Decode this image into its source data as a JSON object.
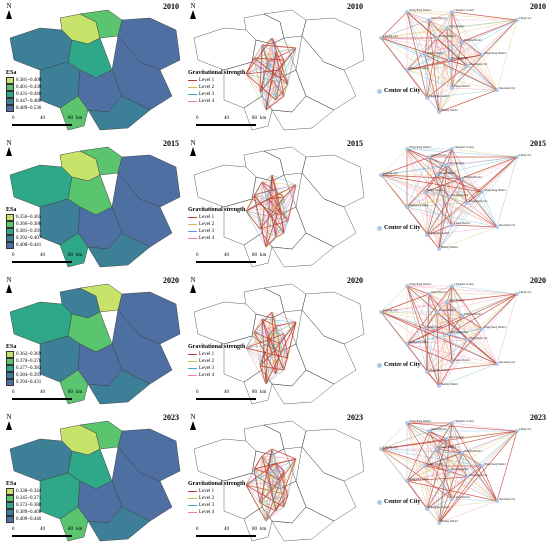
{
  "colors": {
    "c1": "#c8e36a",
    "c2": "#5bc46f",
    "c3": "#2ea889",
    "c4": "#3c7f97",
    "c5": "#4e6fa1",
    "level1": "#c0392b",
    "level2": "#d4b84a",
    "level3": "#4aa6c9",
    "level4": "#f07aa8",
    "center": "#a9c9ef"
  },
  "north_label": "N",
  "esa_title": "ESa",
  "grav_title": "Gravitational strength",
  "center_label": "Center of City",
  "level_labels": [
    "Level 1",
    "Level 2",
    "Level 3",
    "Level 4"
  ],
  "scale": {
    "ticks": [
      "0",
      "40",
      "80"
    ],
    "unit": "km"
  },
  "rows": [
    {
      "year": "2010",
      "esa_classes": [
        "0.381~0.400",
        "0.401~0.430",
        "0.431~0.446",
        "0.447~0.488",
        "0.489~0.536"
      ]
    },
    {
      "year": "2015",
      "esa_classes": [
        "0.356~0.365",
        "0.366~0.380",
        "0.381~0.391",
        "0.392~0.407",
        "0.408~0.441"
      ]
    },
    {
      "year": "2020",
      "esa_classes": [
        "0.362~0.369",
        "0.370~0.376",
        "0.377~0.383",
        "0.384~0.393",
        "0.394~0.431"
      ]
    },
    {
      "year": "2023",
      "esa_classes": [
        "0.338~0.344",
        "0.345~0.371",
        "0.372~0.388",
        "0.389~0.408",
        "0.409~0.440"
      ]
    }
  ],
  "node_labels": [
    "Wangcheng District",
    "Changsha County",
    "Yuelu District",
    "Kaifu District",
    "Furong District",
    "Tianxin District",
    "Yuhua District",
    "Ningxiang City",
    "Liuyang City",
    "Liling City",
    "Shaoshan City",
    "Xiangtan County",
    "Xiangxiang City",
    "Lukou District",
    "Hetang District"
  ]
}
